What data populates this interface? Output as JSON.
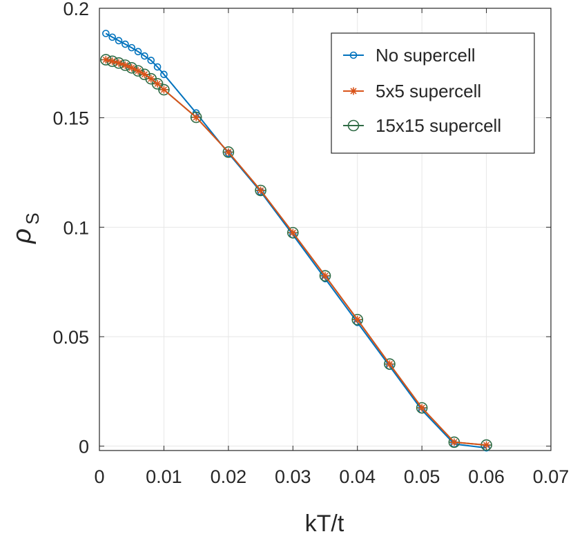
{
  "chart_data": {
    "type": "line",
    "xlabel": "kT/t",
    "ylabel": "ρ",
    "ylabel_subscript": "S",
    "xlim": [
      0,
      0.07
    ],
    "ylim": [
      -0.002,
      0.2
    ],
    "xticks": [
      0,
      0.01,
      0.02,
      0.03,
      0.04,
      0.05,
      0.06,
      0.07
    ],
    "xtick_labels": [
      "0",
      "0.01",
      "0.02",
      "0.03",
      "0.04",
      "0.05",
      "0.06",
      "0.07"
    ],
    "yticks": [
      0,
      0.05,
      0.1,
      0.15,
      0.2
    ],
    "ytick_labels": [
      "0",
      "0.05",
      "0.1",
      "0.15",
      "0.2"
    ],
    "grid": true,
    "legend_position": "top-right",
    "series": [
      {
        "name": "No supercell",
        "color": "#0072BD",
        "marker": "circle-small",
        "x": [
          0.001,
          0.002,
          0.003,
          0.004,
          0.005,
          0.006,
          0.007,
          0.008,
          0.009,
          0.01,
          0.015,
          0.02,
          0.025,
          0.03,
          0.035,
          0.04,
          0.045,
          0.05,
          0.055,
          0.06
        ],
        "y": [
          0.1885,
          0.1868,
          0.1852,
          0.1836,
          0.182,
          0.1802,
          0.1782,
          0.1762,
          0.1732,
          0.1698,
          0.1522,
          0.1338,
          0.1162,
          0.0965,
          0.0765,
          0.0565,
          0.0365,
          0.0165,
          0.001,
          -0.0008
        ]
      },
      {
        "name": "5x5 supercell",
        "color": "#D95319",
        "marker": "asterisk",
        "x": [
          0.001,
          0.002,
          0.003,
          0.004,
          0.005,
          0.006,
          0.007,
          0.008,
          0.009,
          0.01,
          0.015,
          0.02,
          0.025,
          0.03,
          0.035,
          0.04,
          0.045,
          0.05,
          0.055,
          0.06
        ],
        "y": [
          0.1765,
          0.1758,
          0.175,
          0.174,
          0.1728,
          0.1714,
          0.1698,
          0.1678,
          0.1655,
          0.1628,
          0.1502,
          0.1343,
          0.1168,
          0.0975,
          0.0778,
          0.0578,
          0.0375,
          0.0175,
          0.0018,
          0.0005
        ]
      },
      {
        "name": "15x15 supercell",
        "color": "#2F6B45",
        "marker": "circle-large",
        "x": [
          0.001,
          0.002,
          0.003,
          0.004,
          0.005,
          0.006,
          0.007,
          0.008,
          0.009,
          0.01,
          0.015,
          0.02,
          0.025,
          0.03,
          0.035,
          0.04,
          0.045,
          0.05,
          0.055,
          0.06
        ],
        "y": [
          0.1765,
          0.1758,
          0.175,
          0.174,
          0.1728,
          0.1714,
          0.1698,
          0.1678,
          0.1655,
          0.1628,
          0.1502,
          0.1343,
          0.1168,
          0.0975,
          0.0778,
          0.0578,
          0.0375,
          0.0175,
          0.0018,
          0.0005
        ]
      }
    ]
  }
}
